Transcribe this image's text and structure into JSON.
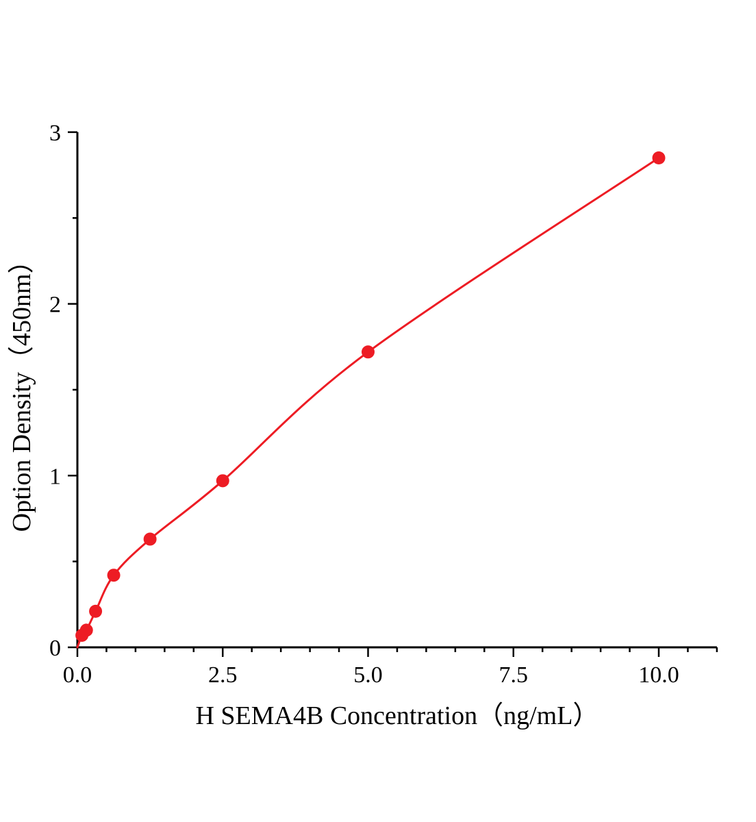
{
  "figure": {
    "background_color": "#ffffff"
  },
  "chart_data": {
    "type": "line",
    "title": "",
    "xlabel": "H SEMA4B Concentration（ng/mL）",
    "ylabel": "Option Density（450nm）",
    "x": [
      0.078,
      0.156,
      0.313,
      0.625,
      1.25,
      2.5,
      5.0,
      10.0
    ],
    "y": [
      0.07,
      0.1,
      0.21,
      0.42,
      0.63,
      0.97,
      1.72,
      2.85
    ],
    "curve_start": {
      "x": 0.0,
      "y": 0.0
    },
    "xlim": [
      0,
      11
    ],
    "ylim": [
      0,
      3
    ],
    "x_major_ticks": [
      0.0,
      2.5,
      5.0,
      7.5,
      10.0
    ],
    "x_tick_labels": [
      "0.0",
      "2.5",
      "5.0",
      "7.5",
      "10.0"
    ],
    "y_major_ticks": [
      0,
      1,
      2,
      3
    ],
    "y_tick_labels": [
      "0",
      "1",
      "2",
      "3"
    ],
    "x_minor_step": 0.5,
    "y_minor_step": 0.5,
    "grid": false,
    "legend": "none",
    "line_color": "#ed1c24",
    "marker_color": "#ed1c24",
    "axis_color": "#000000",
    "marker_radius": 9.5,
    "line_width": 3
  }
}
